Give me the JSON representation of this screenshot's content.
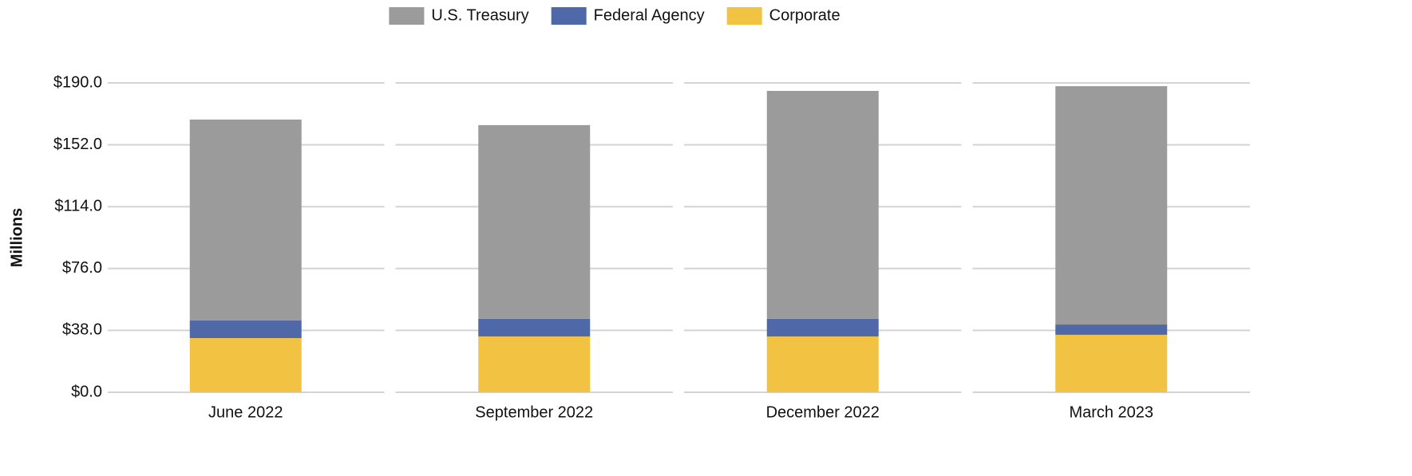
{
  "chart_data": {
    "type": "stacked_bar",
    "y_label": "Millions",
    "categories": [
      "June 2022",
      "September 2022",
      "December 2022",
      "March 2023"
    ],
    "series": [
      {
        "name": "U.S. Treasury",
        "color": "#9b9b9b",
        "values": [
          123.4,
          119.0,
          140.0,
          146.4
        ]
      },
      {
        "name": "Federal Agency",
        "color": "#4f68a8",
        "values": [
          10.8,
          10.8,
          10.8,
          6.3
        ]
      },
      {
        "name": "Corporate",
        "color": "#f2c343",
        "values": [
          33.3,
          34.3,
          34.3,
          35.3
        ]
      }
    ],
    "ylim": [
      0,
      190
    ],
    "yticks": [
      {
        "value": 0,
        "label": "$0.0"
      },
      {
        "value": 38,
        "label": "$38.0"
      },
      {
        "value": 76,
        "label": "$76.0"
      },
      {
        "value": 114,
        "label": "$114.0"
      },
      {
        "value": 152,
        "label": "$152.0"
      },
      {
        "value": 190,
        "label": "$190.0"
      }
    ],
    "grid": true,
    "legend": "top"
  }
}
